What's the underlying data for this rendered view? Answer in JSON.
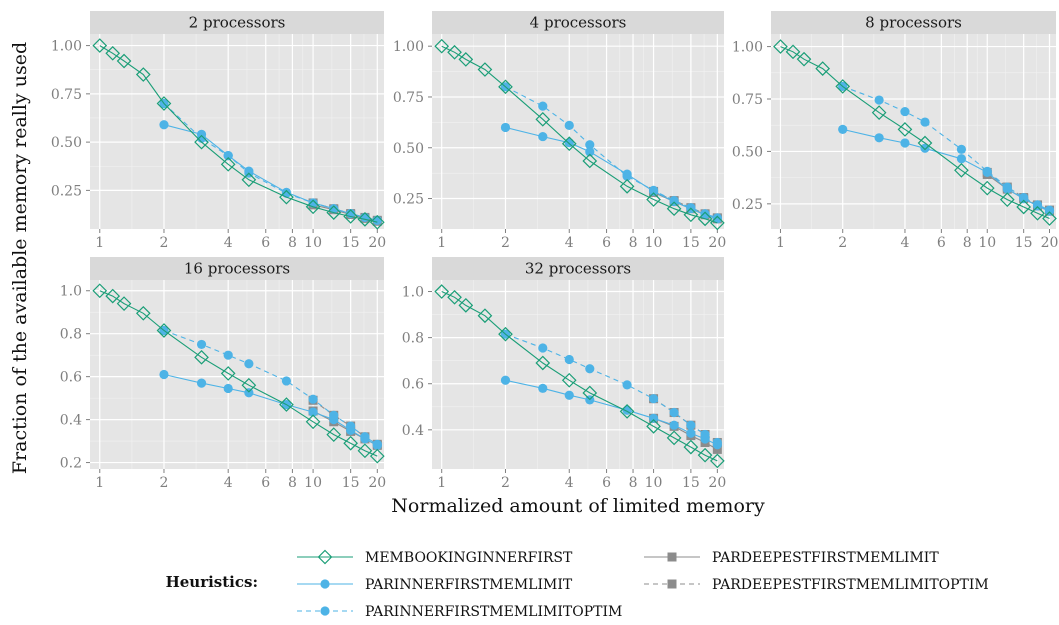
{
  "chart_data": {
    "type": "line",
    "xlabel": "Normalized amount of limited memory",
    "ylabel": "Fraction of the available memory really used",
    "x_scale": "log",
    "x_ticks": [
      1,
      2,
      4,
      6,
      8,
      10,
      15,
      20
    ],
    "xlim": [
      0.9,
      21.5
    ],
    "grid": true,
    "legend": {
      "title": "Heuristics:",
      "position": "bottom",
      "entries": [
        "MEMBOOKINGINNERFIRST",
        "PARINNERFIRSTMEMLIMIT",
        "PARINNERFIRSTMEMLIMITOPTIM",
        "PARDEEPESTFIRSTMEMLIMIT",
        "PARDEEPESTFIRSTMEMLIMITOPTIM"
      ]
    },
    "series_styles": [
      {
        "color": "#1a9e77",
        "marker": "diamond-open",
        "dash": "solid"
      },
      {
        "color": "#4db3e6",
        "marker": "circle",
        "dash": "solid"
      },
      {
        "color": "#4db3e6",
        "marker": "circle",
        "dash": "dashed"
      },
      {
        "color": "#8c8c8c",
        "marker": "square",
        "dash": "solid"
      },
      {
        "color": "#8c8c8c",
        "marker": "square",
        "dash": "dashed"
      }
    ],
    "panels": [
      {
        "title": "2 processors",
        "y_ticks": [
          0.25,
          0.5,
          0.75,
          1.0
        ],
        "y_tick_labels": [
          "0.25",
          "0.50",
          "0.75",
          "1.00"
        ],
        "ylim": [
          0.05,
          1.06
        ],
        "series": [
          {
            "x": [
              1,
              1.15,
              1.3,
              1.6,
              2,
              3,
              4,
              5,
              7.5,
              10,
              12.5,
              15,
              17.5,
              20
            ],
            "y": [
              1.0,
              0.96,
              0.92,
              0.85,
              0.7,
              0.5,
              0.385,
              0.305,
              0.215,
              0.165,
              0.135,
              0.115,
              0.1,
              0.085
            ]
          },
          {
            "x": [
              2,
              3,
              4,
              5,
              7.5,
              10,
              12.5,
              15,
              17.5,
              20
            ],
            "y": [
              0.59,
              0.54,
              0.43,
              0.35,
              0.24,
              0.185,
              0.155,
              0.13,
              0.11,
              0.095
            ]
          },
          {
            "x": [
              2,
              3,
              4,
              5,
              7.5,
              10,
              12.5,
              15,
              17.5,
              20
            ],
            "y": [
              0.7,
              0.52,
              0.43,
              0.34,
              0.235,
              0.185,
              0.155,
              0.13,
              0.11,
              0.095
            ]
          },
          {
            "x": [
              10,
              12.5,
              15,
              17.5,
              20
            ],
            "y": [
              0.175,
              0.15,
              0.125,
              0.105,
              0.09
            ]
          },
          {
            "x": [
              10,
              12.5,
              15,
              17.5,
              20
            ],
            "y": [
              0.185,
              0.155,
              0.13,
              0.11,
              0.095
            ]
          }
        ]
      },
      {
        "title": "4 processors",
        "y_ticks": [
          0.25,
          0.5,
          0.75,
          1.0
        ],
        "y_tick_labels": [
          "0.25",
          "0.50",
          "0.75",
          "1.00"
        ],
        "ylim": [
          0.1,
          1.06
        ],
        "series": [
          {
            "x": [
              1,
              1.15,
              1.3,
              1.6,
              2,
              3,
              4,
              5,
              7.5,
              10,
              12.5,
              15,
              17.5,
              20
            ],
            "y": [
              1.0,
              0.97,
              0.935,
              0.885,
              0.8,
              0.64,
              0.52,
              0.435,
              0.31,
              0.245,
              0.2,
              0.17,
              0.15,
              0.13
            ]
          },
          {
            "x": [
              2,
              3,
              4,
              5,
              7.5,
              10,
              12.5,
              15,
              17.5,
              20
            ],
            "y": [
              0.6,
              0.555,
              0.525,
              0.48,
              0.37,
              0.285,
              0.235,
              0.2,
              0.17,
              0.15
            ]
          },
          {
            "x": [
              2,
              3,
              4,
              5,
              7.5,
              10,
              12.5,
              15,
              17.5,
              20
            ],
            "y": [
              0.8,
              0.705,
              0.61,
              0.515,
              0.36,
              0.29,
              0.24,
              0.205,
              0.175,
              0.155
            ]
          },
          {
            "x": [
              10,
              12.5,
              15,
              17.5,
              20
            ],
            "y": [
              0.28,
              0.235,
              0.2,
              0.17,
              0.15
            ]
          },
          {
            "x": [
              10,
              12.5,
              15,
              17.5,
              20
            ],
            "y": [
              0.285,
              0.24,
              0.205,
              0.175,
              0.155
            ]
          }
        ]
      },
      {
        "title": "8 processors",
        "y_ticks": [
          0.25,
          0.5,
          0.75,
          1.0
        ],
        "y_tick_labels": [
          "0.25",
          "0.50",
          "0.75",
          "1.00"
        ],
        "ylim": [
          0.13,
          1.06
        ],
        "series": [
          {
            "x": [
              1,
              1.15,
              1.3,
              1.6,
              2,
              3,
              4,
              5,
              7.5,
              10,
              12.5,
              15,
              17.5,
              20
            ],
            "y": [
              1.0,
              0.975,
              0.94,
              0.895,
              0.81,
              0.685,
              0.605,
              0.54,
              0.41,
              0.325,
              0.27,
              0.235,
              0.205,
              0.18
            ]
          },
          {
            "x": [
              2,
              3,
              4,
              5,
              7.5,
              10,
              12.5,
              15,
              17.5,
              20
            ],
            "y": [
              0.605,
              0.565,
              0.54,
              0.515,
              0.465,
              0.4,
              0.32,
              0.275,
              0.24,
              0.215
            ]
          },
          {
            "x": [
              2,
              3,
              4,
              5,
              7.5,
              10,
              12.5,
              15,
              17.5,
              20
            ],
            "y": [
              0.81,
              0.745,
              0.69,
              0.64,
              0.51,
              0.405,
              0.33,
              0.28,
              0.245,
              0.22
            ]
          },
          {
            "x": [
              10,
              12.5,
              15,
              17.5,
              20
            ],
            "y": [
              0.39,
              0.32,
              0.275,
              0.24,
              0.215
            ]
          },
          {
            "x": [
              10,
              12.5,
              15,
              17.5,
              20
            ],
            "y": [
              0.4,
              0.33,
              0.28,
              0.245,
              0.22
            ]
          }
        ]
      },
      {
        "title": "16 processors",
        "y_ticks": [
          0.2,
          0.4,
          0.6,
          0.8,
          1.0
        ],
        "y_tick_labels": [
          "0.2",
          "0.4",
          "0.6",
          "0.8",
          "1.0"
        ],
        "ylim": [
          0.17,
          1.05
        ],
        "series": [
          {
            "x": [
              1,
              1.15,
              1.3,
              1.6,
              2,
              3,
              4,
              5,
              7.5,
              10,
              12.5,
              15,
              17.5,
              20
            ],
            "y": [
              1.0,
              0.975,
              0.94,
              0.895,
              0.815,
              0.69,
              0.615,
              0.56,
              0.47,
              0.39,
              0.33,
              0.29,
              0.255,
              0.23
            ]
          },
          {
            "x": [
              2,
              3,
              4,
              5,
              7.5,
              10,
              12.5,
              15,
              17.5,
              20
            ],
            "y": [
              0.61,
              0.57,
              0.545,
              0.525,
              0.47,
              0.435,
              0.4,
              0.35,
              0.31,
              0.28
            ]
          },
          {
            "x": [
              2,
              3,
              4,
              5,
              7.5,
              10,
              12.5,
              15,
              17.5,
              20
            ],
            "y": [
              0.815,
              0.75,
              0.7,
              0.66,
              0.58,
              0.495,
              0.42,
              0.37,
              0.32,
              0.285
            ]
          },
          {
            "x": [
              10,
              12.5,
              15,
              17.5,
              20
            ],
            "y": [
              0.44,
              0.39,
              0.345,
              0.31,
              0.28
            ]
          },
          {
            "x": [
              10,
              12.5,
              15,
              17.5,
              20
            ],
            "y": [
              0.49,
              0.42,
              0.37,
              0.32,
              0.285
            ]
          }
        ]
      },
      {
        "title": "32 processors",
        "y_ticks": [
          0.4,
          0.6,
          0.8,
          1.0
        ],
        "y_tick_labels": [
          "0.4",
          "0.6",
          "0.8",
          "1.0"
        ],
        "ylim": [
          0.23,
          1.05
        ],
        "series": [
          {
            "x": [
              1,
              1.15,
              1.3,
              1.6,
              2,
              3,
              4,
              5,
              7.5,
              10,
              12.5,
              15,
              17.5,
              20
            ],
            "y": [
              1.0,
              0.975,
              0.94,
              0.895,
              0.815,
              0.69,
              0.615,
              0.56,
              0.48,
              0.415,
              0.365,
              0.325,
              0.29,
              0.265
            ]
          },
          {
            "x": [
              2,
              3,
              4,
              5,
              7.5,
              10,
              12.5,
              15,
              17.5,
              20
            ],
            "y": [
              0.615,
              0.58,
              0.55,
              0.53,
              0.485,
              0.45,
              0.42,
              0.385,
              0.36,
              0.335
            ]
          },
          {
            "x": [
              2,
              3,
              4,
              5,
              7.5,
              10,
              12.5,
              15,
              17.5,
              20
            ],
            "y": [
              0.815,
              0.755,
              0.705,
              0.665,
              0.595,
              0.535,
              0.475,
              0.42,
              0.38,
              0.345
            ]
          },
          {
            "x": [
              10,
              12.5,
              15,
              17.5,
              20
            ],
            "y": [
              0.45,
              0.415,
              0.375,
              0.345,
              0.315
            ]
          },
          {
            "x": [
              10,
              12.5,
              15,
              17.5,
              20
            ],
            "y": [
              0.535,
              0.475,
              0.42,
              0.38,
              0.345
            ]
          }
        ]
      }
    ]
  }
}
